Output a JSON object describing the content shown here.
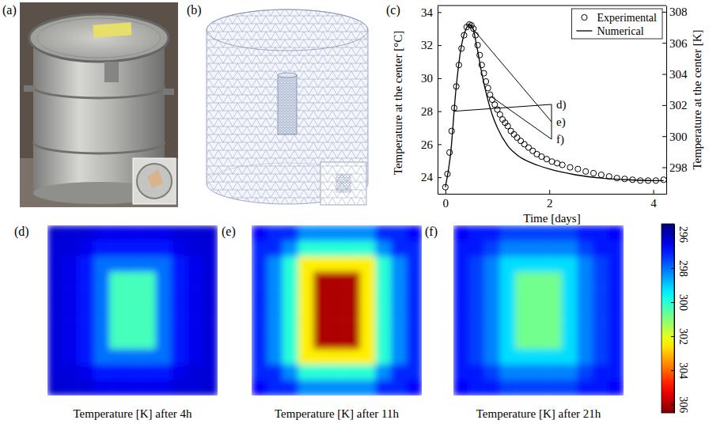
{
  "figure": {
    "photo_label": "(a)",
    "mesh_label": "(b)"
  },
  "chart_data": [
    {
      "type": "line",
      "panel_label": "(c)",
      "xlabel": "Time [days]",
      "ylabel": "Temperature at the center [°C]",
      "y2label": "Temperature at the center [K]",
      "xlim": [
        -0.15,
        4.25
      ],
      "xticks": [
        0,
        2,
        4
      ],
      "ylim": [
        23.0,
        34.4
      ],
      "yticks": [
        24,
        26,
        28,
        30,
        32,
        34
      ],
      "y2lim": [
        296.3,
        308.4
      ],
      "y2ticks": [
        298,
        300,
        302,
        304,
        306,
        308
      ],
      "legend": "upper right",
      "series": [
        {
          "name": "Experimental",
          "type": "scatter",
          "marker": "circle",
          "color": "#000000",
          "x": [
            0,
            0.04,
            0.08,
            0.12,
            0.17,
            0.21,
            0.26,
            0.31,
            0.36,
            0.41,
            0.46,
            0.5,
            0.54,
            0.58,
            0.62,
            0.66,
            0.7,
            0.74,
            0.78,
            0.82,
            0.86,
            0.9,
            0.95,
            1.0,
            1.05,
            1.1,
            1.15,
            1.2,
            1.26,
            1.32,
            1.38,
            1.45,
            1.52,
            1.6,
            1.68,
            1.76,
            1.85,
            1.95,
            2.05,
            2.15,
            2.25,
            2.4,
            2.55,
            2.7,
            2.85,
            3.0,
            3.15,
            3.3,
            3.45,
            3.6,
            3.75,
            3.9,
            4.05,
            4.2
          ],
          "values": [
            23.4,
            24.2,
            25.5,
            26.8,
            28.2,
            29.5,
            30.8,
            31.8,
            32.6,
            33.1,
            33.25,
            33.2,
            33.0,
            32.6,
            32.0,
            31.4,
            30.8,
            30.3,
            29.8,
            29.4,
            29.0,
            28.7,
            28.4,
            28.1,
            27.8,
            27.5,
            27.3,
            27.1,
            26.8,
            26.6,
            26.4,
            26.2,
            26.0,
            25.8,
            25.6,
            25.4,
            25.25,
            25.1,
            24.95,
            24.85,
            24.75,
            24.6,
            24.5,
            24.35,
            24.25,
            24.15,
            24.05,
            23.95,
            23.9,
            23.85,
            23.8,
            23.8,
            23.8,
            23.85
          ]
        },
        {
          "name": "Numerical",
          "type": "line",
          "line_style": "solid",
          "color": "#000000",
          "x": [
            0,
            0.1,
            0.2,
            0.3,
            0.4,
            0.46,
            0.52,
            0.6,
            0.7,
            0.8,
            0.9,
            1.0,
            1.2,
            1.4,
            1.6,
            1.8,
            2.0,
            2.5,
            3.0,
            3.5,
            4.0,
            4.2
          ],
          "values": [
            23.4,
            25.4,
            29.2,
            31.8,
            33.0,
            33.25,
            33.1,
            32.0,
            30.3,
            28.9,
            27.8,
            27.0,
            25.9,
            25.3,
            24.95,
            24.7,
            24.5,
            24.15,
            23.95,
            23.85,
            23.8,
            23.8
          ]
        }
      ],
      "annotations": [
        {
          "text": "d)",
          "x": 0.167,
          "y": 28.0
        },
        {
          "text": "e)",
          "x": 0.458,
          "y": 33.25
        },
        {
          "text": "f)",
          "x": 0.875,
          "y": 28.9
        }
      ]
    },
    {
      "type": "heatmap",
      "panel_label": "(d)",
      "title": "Temperature [K] after 4h",
      "tick_labels": false,
      "z": [
        [
          296.3,
          296.4,
          296.4,
          296.6,
          296.6,
          296.6,
          296.6,
          296.6,
          296.4,
          296.4,
          296.3
        ],
        [
          296.4,
          296.4,
          296.6,
          297,
          297,
          297,
          297,
          297,
          296.6,
          296.4,
          296.4
        ],
        [
          296.4,
          296.6,
          297,
          298,
          298,
          298,
          298,
          298,
          297,
          296.6,
          296.4
        ],
        [
          296.4,
          296.6,
          297,
          298,
          300.3,
          300.3,
          300.3,
          298,
          297,
          296.6,
          296.4
        ],
        [
          296.4,
          296.6,
          297,
          298,
          300.3,
          300.3,
          300.3,
          298,
          297,
          296.6,
          296.4
        ],
        [
          296.4,
          296.6,
          297,
          298,
          300.3,
          300.3,
          300.3,
          298,
          297,
          296.6,
          296.4
        ],
        [
          296.4,
          296.6,
          297,
          298,
          300.3,
          300.3,
          300.3,
          298,
          297,
          296.6,
          296.4
        ],
        [
          296.4,
          296.6,
          297,
          298,
          300.3,
          300.3,
          300.3,
          298,
          297,
          296.6,
          296.4
        ],
        [
          296.4,
          296.6,
          297,
          298,
          298,
          298,
          298,
          298,
          297,
          296.6,
          296.4
        ],
        [
          296.4,
          296.4,
          296.6,
          297,
          297,
          297,
          297,
          297,
          296.6,
          296.4,
          296.4
        ],
        [
          296.3,
          296.4,
          296.4,
          296.6,
          296.6,
          296.6,
          296.6,
          296.6,
          296.4,
          296.4,
          296.3
        ]
      ]
    },
    {
      "type": "heatmap",
      "panel_label": "(e)",
      "title": "Temperature [K] after 11h",
      "tick_labels": false,
      "z": [
        [
          296.8,
          297.2,
          297.2,
          298.3,
          298.3,
          298.3,
          298.3,
          298.3,
          297.2,
          297.2,
          296.8
        ],
        [
          297.2,
          297.2,
          298.3,
          300,
          300,
          300,
          300,
          300,
          298.3,
          297.2,
          297.2
        ],
        [
          297.2,
          298.3,
          300,
          302.5,
          302.5,
          302.5,
          302.5,
          302.5,
          300,
          298.3,
          297.2
        ],
        [
          297.2,
          298.3,
          300,
          302.5,
          306,
          306,
          306,
          302.5,
          300,
          298.3,
          297.2
        ],
        [
          297.2,
          298.3,
          300,
          302.5,
          306,
          306,
          306,
          302.5,
          300,
          298.3,
          297.2
        ],
        [
          297.2,
          298.3,
          300,
          302.5,
          306,
          306,
          306,
          302.5,
          300,
          298.3,
          297.2
        ],
        [
          297.2,
          298.3,
          300,
          302.5,
          306,
          306,
          306,
          302.5,
          300,
          298.3,
          297.2
        ],
        [
          297.2,
          298.3,
          300,
          302.5,
          306,
          306,
          306,
          302.5,
          300,
          298.3,
          297.2
        ],
        [
          297.2,
          298.3,
          300,
          302.5,
          302.5,
          302.5,
          302.5,
          302.5,
          300,
          298.3,
          297.2
        ],
        [
          297.2,
          297.2,
          298.3,
          300,
          300,
          300,
          300,
          300,
          298.3,
          297.2,
          297.2
        ],
        [
          296.8,
          297.2,
          297.2,
          298.3,
          298.3,
          298.3,
          298.3,
          298.3,
          297.2,
          297.2,
          296.8
        ]
      ]
    },
    {
      "type": "heatmap",
      "panel_label": "(f)",
      "title": "Temperature [K] after 21h",
      "tick_labels": false,
      "z": [
        [
          296.8,
          297,
          297,
          297.5,
          297.5,
          297.5,
          297.5,
          297.5,
          297,
          297,
          296.8
        ],
        [
          297,
          297,
          297.5,
          298.2,
          298.2,
          298.2,
          298.2,
          298.2,
          297.5,
          297,
          297
        ],
        [
          297,
          297.5,
          298.2,
          299.2,
          299.2,
          299.2,
          299.2,
          299.2,
          298.2,
          297.5,
          297
        ],
        [
          297,
          297.5,
          298.2,
          299.2,
          300.8,
          300.8,
          300.8,
          299.2,
          298.2,
          297.5,
          297
        ],
        [
          297,
          297.5,
          298.2,
          299.2,
          300.8,
          300.8,
          300.8,
          299.2,
          298.2,
          297.5,
          297
        ],
        [
          297,
          297.5,
          298.2,
          299.2,
          300.8,
          300.8,
          300.8,
          299.2,
          298.2,
          297.5,
          297
        ],
        [
          297,
          297.5,
          298.2,
          299.2,
          300.8,
          300.8,
          300.8,
          299.2,
          298.2,
          297.5,
          297
        ],
        [
          297,
          297.5,
          298.2,
          299.2,
          300.8,
          300.8,
          300.8,
          299.2,
          298.2,
          297.5,
          297
        ],
        [
          297,
          297.5,
          298.2,
          299.2,
          299.2,
          299.2,
          299.2,
          299.2,
          298.2,
          297.5,
          297
        ],
        [
          297,
          297,
          297.5,
          298.2,
          298.2,
          298.2,
          298.2,
          298.2,
          297.5,
          297,
          297
        ],
        [
          296.8,
          297,
          297,
          297.5,
          297.5,
          297.5,
          297.5,
          297.5,
          297,
          297,
          296.8
        ]
      ]
    }
  ],
  "colorbar": {
    "range": [
      295.4,
      306.5
    ],
    "ticks": [
      296,
      298,
      300,
      302,
      304,
      306
    ]
  }
}
